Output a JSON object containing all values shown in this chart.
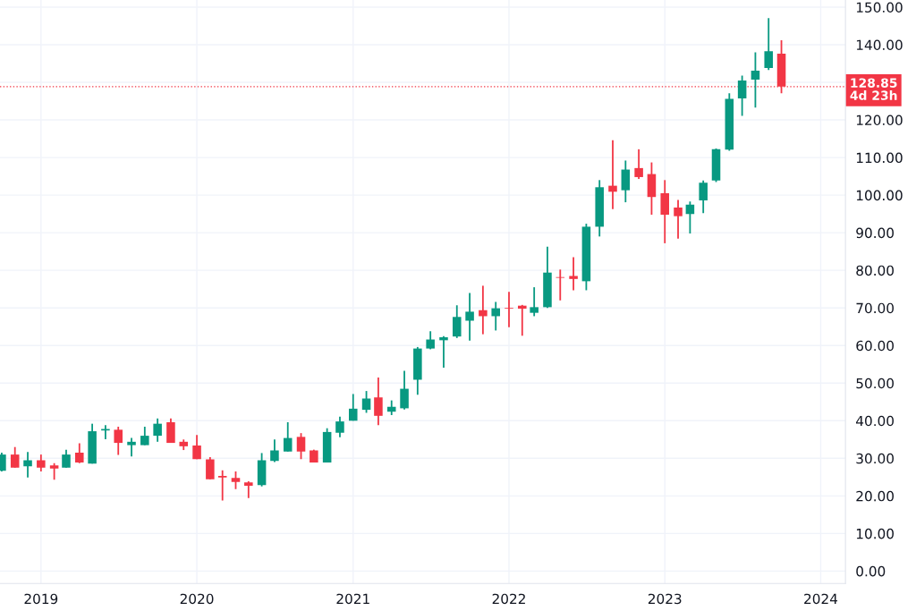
{
  "chart_data": {
    "type": "candlestick",
    "x": [
      "2018-10",
      "2018-11",
      "2018-12",
      "2019-01",
      "2019-02",
      "2019-03",
      "2019-04",
      "2019-05",
      "2019-06",
      "2019-07",
      "2019-08",
      "2019-09",
      "2019-10",
      "2019-11",
      "2019-12",
      "2020-01",
      "2020-02",
      "2020-03",
      "2020-04",
      "2020-05",
      "2020-06",
      "2020-07",
      "2020-08",
      "2020-09",
      "2020-10",
      "2020-11",
      "2020-12",
      "2021-01",
      "2021-02",
      "2021-03",
      "2021-04",
      "2021-05",
      "2021-06",
      "2021-07",
      "2021-08",
      "2021-09",
      "2021-10",
      "2021-11",
      "2021-12",
      "2022-01",
      "2022-02",
      "2022-03",
      "2022-04",
      "2022-05",
      "2022-06",
      "2022-07",
      "2022-08",
      "2022-09",
      "2022-10",
      "2022-11",
      "2022-12",
      "2023-01",
      "2023-02",
      "2023-03",
      "2023-04",
      "2023-05",
      "2023-06",
      "2023-07",
      "2023-08",
      "2023-09",
      "2023-10"
    ],
    "ohlc": [
      [
        26.7,
        31.5,
        26.5,
        31.0
      ],
      [
        31.0,
        33.0,
        27.5,
        27.5
      ],
      [
        27.9,
        31.7,
        24.9,
        29.5
      ],
      [
        29.5,
        31.0,
        26.5,
        27.5
      ],
      [
        28.1,
        28.7,
        24.3,
        27.3
      ],
      [
        27.5,
        32.3,
        27.5,
        31.0
      ],
      [
        31.5,
        34.0,
        28.7,
        28.9
      ],
      [
        28.6,
        39.2,
        28.6,
        37.2
      ],
      [
        37.4,
        38.8,
        35.1,
        37.8
      ],
      [
        37.6,
        38.4,
        30.9,
        34.1
      ],
      [
        33.5,
        35.4,
        30.5,
        34.4
      ],
      [
        33.5,
        38.4,
        33.5,
        36.0
      ],
      [
        36.0,
        40.6,
        34.4,
        39.2
      ],
      [
        39.6,
        40.6,
        34.1,
        34.1
      ],
      [
        34.4,
        35.0,
        32.2,
        33.2
      ],
      [
        33.4,
        36.2,
        29.8,
        29.8
      ],
      [
        29.7,
        30.3,
        24.4,
        24.4
      ],
      [
        25.3,
        26.8,
        18.8,
        24.9
      ],
      [
        24.8,
        26.5,
        21.8,
        23.7
      ],
      [
        23.6,
        23.9,
        19.4,
        22.7
      ],
      [
        22.9,
        31.4,
        22.5,
        29.5
      ],
      [
        29.3,
        35.0,
        29.0,
        32.1
      ],
      [
        31.8,
        39.6,
        31.8,
        35.4
      ],
      [
        35.7,
        36.7,
        29.8,
        31.8
      ],
      [
        32.1,
        32.3,
        28.9,
        28.9
      ],
      [
        28.9,
        38.0,
        28.9,
        37.0
      ],
      [
        36.8,
        41.1,
        35.6,
        39.8
      ],
      [
        40.0,
        47.1,
        40.0,
        43.2
      ],
      [
        42.9,
        47.9,
        42.1,
        45.9
      ],
      [
        46.2,
        51.5,
        38.8,
        41.3
      ],
      [
        42.4,
        45.4,
        41.5,
        43.7
      ],
      [
        43.3,
        53.3,
        43.0,
        48.5
      ],
      [
        50.9,
        59.6,
        46.9,
        59.2
      ],
      [
        59.2,
        63.8,
        59.0,
        61.6
      ],
      [
        61.4,
        62.5,
        54.1,
        62.2
      ],
      [
        62.4,
        70.7,
        62.0,
        67.6
      ],
      [
        66.6,
        74.0,
        61.3,
        69.0
      ],
      [
        69.4,
        75.9,
        63.0,
        67.8
      ],
      [
        67.8,
        71.6,
        64.0,
        69.9
      ],
      [
        70.0,
        74.3,
        64.9,
        69.8
      ],
      [
        70.6,
        70.8,
        62.6,
        69.8
      ],
      [
        68.7,
        75.5,
        67.8,
        70.2
      ],
      [
        70.2,
        86.3,
        70.0,
        79.4
      ],
      [
        78.2,
        80.2,
        72.0,
        78.0
      ],
      [
        78.5,
        83.5,
        74.7,
        77.7
      ],
      [
        77.1,
        92.4,
        74.7,
        91.6
      ],
      [
        91.6,
        104.0,
        89.0,
        102.1
      ],
      [
        102.5,
        114.6,
        96.3,
        100.9
      ],
      [
        101.3,
        109.2,
        98.1,
        106.8
      ],
      [
        107.2,
        112.2,
        104.3,
        104.8
      ],
      [
        105.6,
        108.7,
        94.8,
        99.5
      ],
      [
        100.5,
        104.0,
        87.2,
        94.8
      ],
      [
        96.7,
        98.7,
        88.4,
        94.4
      ],
      [
        95.0,
        98.3,
        89.8,
        97.5
      ],
      [
        98.6,
        103.9,
        95.2,
        103.3
      ],
      [
        103.9,
        112.4,
        103.5,
        112.2
      ],
      [
        112.1,
        127.1,
        111.8,
        125.6
      ],
      [
        125.7,
        131.8,
        121.1,
        130.5
      ],
      [
        130.7,
        138.0,
        123.3,
        133.1
      ],
      [
        133.8,
        147.1,
        133.3,
        138.3
      ],
      [
        137.6,
        141.2,
        127.1,
        128.85
      ]
    ],
    "colors": [
      "#089981",
      "#f23645",
      "#089981",
      "#f23645",
      "#f23645",
      "#089981",
      "#f23645",
      "#089981",
      "#089981",
      "#f23645",
      "#089981",
      "#089981",
      "#089981",
      "#f23645",
      "#f23645",
      "#f23645",
      "#f23645",
      "#f23645",
      "#f23645",
      "#f23645",
      "#089981",
      "#089981",
      "#089981",
      "#f23645",
      "#f23645",
      "#089981",
      "#089981",
      "#089981",
      "#089981",
      "#f23645",
      "#089981",
      "#089981",
      "#089981",
      "#089981",
      "#089981",
      "#089981",
      "#089981",
      "#f23645",
      "#089981",
      "#f23645",
      "#f23645",
      "#089981",
      "#089981",
      "#f23645",
      "#f23645",
      "#089981",
      "#089981",
      "#f23645",
      "#089981",
      "#f23645",
      "#f23645",
      "#f23645",
      "#f23645",
      "#089981",
      "#089981",
      "#089981",
      "#089981",
      "#089981",
      "#089981",
      "#089981",
      "#f23645"
    ],
    "xlim": [
      "2018-09-27",
      "2024-02-28"
    ],
    "xticks": [
      {
        "value": "2019-01",
        "label": "2019"
      },
      {
        "value": "2020-01",
        "label": "2020"
      },
      {
        "value": "2021-01",
        "label": "2021"
      },
      {
        "value": "2022-01",
        "label": "2022"
      },
      {
        "value": "2023-01",
        "label": "2023"
      },
      {
        "value": "2024-01",
        "label": "2024"
      }
    ],
    "ylim": [
      -3.3,
      151.9
    ],
    "yticks": [
      {
        "value": 0,
        "label": "0.00"
      },
      {
        "value": 10,
        "label": "10.00"
      },
      {
        "value": 20,
        "label": "20.00"
      },
      {
        "value": 30,
        "label": "30.00"
      },
      {
        "value": 40,
        "label": "40.00"
      },
      {
        "value": 50,
        "label": "50.00"
      },
      {
        "value": 60,
        "label": "60.00"
      },
      {
        "value": 70,
        "label": "70.00"
      },
      {
        "value": 80,
        "label": "80.00"
      },
      {
        "value": 90,
        "label": "90.00"
      },
      {
        "value": 100,
        "label": "100.00"
      },
      {
        "value": 110,
        "label": "110.00"
      },
      {
        "value": 120,
        "label": "120.00"
      },
      {
        "value": 130,
        "label": null
      },
      {
        "value": 140,
        "label": "140.00"
      },
      {
        "value": 150,
        "label": "150.00"
      }
    ],
    "ref_lines": [
      {
        "axis": "y",
        "value": 128.85,
        "label": "128.85\n4d 23h",
        "color": "#f23645",
        "line_style": "dotted"
      }
    ],
    "grid": true
  }
}
